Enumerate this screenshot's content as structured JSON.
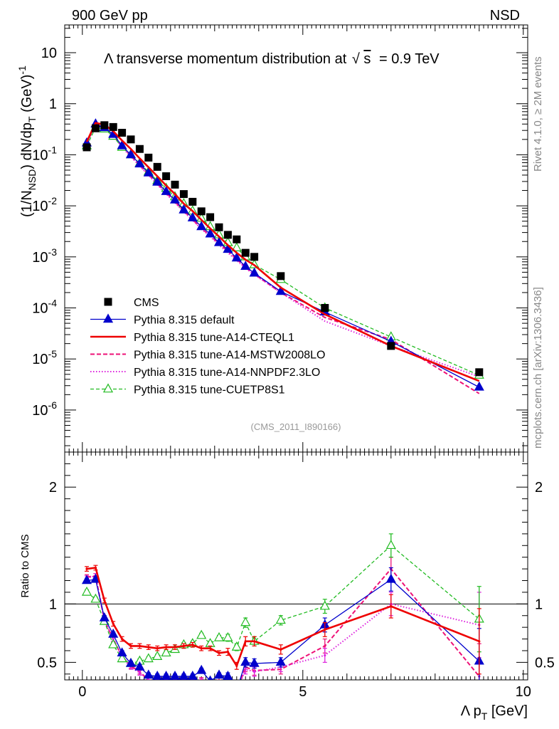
{
  "header": {
    "left": "900 GeV pp",
    "right": "NSD"
  },
  "side_labels": {
    "rivet": "Rivet 4.1.0, ≥ 2M events",
    "mcplots": "mcplots.cern.ch [arXiv:1306.3436]"
  },
  "colors": {
    "cms": "#000000",
    "default": "#0000cc",
    "cteql1": "#ee0000",
    "mstw": "#ee1177",
    "nnpdf": "#dd22dd",
    "cuetp8s1": "#22bb22"
  },
  "chart_data": [
    {
      "type": "line",
      "scale": "log",
      "title": "Λ transverse momentum distribution at √s = 0.9 TeV",
      "title_parts": {
        "main": "Λ transverse momentum distribution at",
        "sqrt": "s",
        "tail": "= 0.9 TeV"
      },
      "ylabel": "(1/N_NSD) dN/dp_T (GeV)^-1",
      "ylabel_parts": {
        "a": "(1/N",
        "b": "NSD",
        "c": ") dN/dp",
        "d": "T",
        "e": " (GeV)",
        "f": "-1"
      },
      "xlim": [
        -0.4,
        10.1
      ],
      "ylim": [
        1.5e-07,
        35
      ],
      "y_ticks": [
        {
          "v": 10,
          "t": "10"
        },
        {
          "v": 1,
          "t": "1"
        },
        {
          "v": 0.1,
          "m": "10",
          "e": "-1"
        },
        {
          "v": 0.01,
          "m": "10",
          "e": "-2"
        },
        {
          "v": 0.001,
          "m": "10",
          "e": "-3"
        },
        {
          "v": 0.0001,
          "m": "10",
          "e": "-4"
        },
        {
          "v": 1e-05,
          "m": "10",
          "e": "-5"
        },
        {
          "v": 1e-06,
          "m": "10",
          "e": "-6"
        }
      ],
      "watermark": "(CMS_2011_I890166)",
      "legend_position": "lower-left",
      "series": [
        {
          "name": "CMS",
          "key": "cms",
          "style": "square",
          "x": [
            0.1,
            0.3,
            0.5,
            0.7,
            0.9,
            1.1,
            1.3,
            1.5,
            1.7,
            1.9,
            2.1,
            2.3,
            2.5,
            2.7,
            2.9,
            3.1,
            3.3,
            3.5,
            3.7,
            3.9,
            4.5,
            5.5,
            7.0,
            9.0
          ],
          "values": [
            0.14,
            0.33,
            0.38,
            0.35,
            0.27,
            0.2,
            0.13,
            0.088,
            0.058,
            0.038,
            0.026,
            0.017,
            0.012,
            0.0078,
            0.006,
            0.0038,
            0.0027,
            0.0022,
            0.0012,
            0.001,
            0.00042,
            0.0001,
            1.8e-05,
            5.5e-06
          ]
        },
        {
          "name": "Pythia 8.315 default",
          "key": "default",
          "style": "solid-triangle",
          "x": [
            0.1,
            0.3,
            0.5,
            0.7,
            0.9,
            1.1,
            1.3,
            1.5,
            1.7,
            1.9,
            2.1,
            2.3,
            2.5,
            2.7,
            2.9,
            3.1,
            3.3,
            3.5,
            3.7,
            3.9,
            4.5,
            5.5,
            7.0,
            9.0
          ],
          "values": [
            0.17,
            0.4,
            0.34,
            0.25,
            0.15,
            0.1,
            0.066,
            0.044,
            0.029,
            0.019,
            0.013,
            0.0083,
            0.0058,
            0.0039,
            0.0028,
            0.0019,
            0.0014,
            0.00095,
            0.00065,
            0.00048,
            0.00021,
            8.3e-05,
            2.2e-05,
            2.8e-06
          ]
        },
        {
          "name": "Pythia 8.315 tune-A14-CTEQL1",
          "key": "cteql1",
          "style": "thick",
          "x": [
            0.1,
            0.3,
            0.5,
            0.7,
            0.9,
            1.1,
            1.3,
            1.5,
            1.7,
            1.9,
            2.1,
            2.3,
            2.5,
            2.7,
            2.9,
            3.1,
            3.3,
            3.5,
            3.7,
            3.9,
            4.5,
            5.5,
            7.0,
            9.0
          ],
          "values": [
            0.18,
            0.42,
            0.39,
            0.29,
            0.19,
            0.13,
            0.085,
            0.057,
            0.038,
            0.025,
            0.017,
            0.011,
            0.0079,
            0.0053,
            0.0036,
            0.0025,
            0.0017,
            0.0012,
            0.00088,
            0.00069,
            0.00025,
            7.5e-05,
            1.8e-05,
            3.7e-06
          ]
        },
        {
          "name": "Pythia 8.315 tune-A14-MSTW2008LO",
          "key": "mstw",
          "style": "dashed",
          "x": [
            0.1,
            0.3,
            0.5,
            0.7,
            0.9,
            1.1,
            1.3,
            1.5,
            1.7,
            1.9,
            2.1,
            2.3,
            2.5,
            2.7,
            2.9,
            3.1,
            3.3,
            3.5,
            3.7,
            3.9,
            4.5,
            5.5,
            7.0,
            9.0
          ],
          "values": [
            0.17,
            0.4,
            0.33,
            0.24,
            0.145,
            0.095,
            0.062,
            0.041,
            0.027,
            0.018,
            0.012,
            0.0079,
            0.0054,
            0.0036,
            0.0026,
            0.0018,
            0.0013,
            0.0009,
            0.00062,
            0.00046,
            0.0002,
            6.5e-05,
            2.4e-05,
            2.1e-06
          ]
        },
        {
          "name": "Pythia 8.315 tune-A14-NNPDF2.3LO",
          "key": "nnpdf",
          "style": "dotted",
          "x": [
            0.1,
            0.3,
            0.5,
            0.7,
            0.9,
            1.1,
            1.3,
            1.5,
            1.7,
            1.9,
            2.1,
            2.3,
            2.5,
            2.7,
            2.9,
            3.1,
            3.3,
            3.5,
            3.7,
            3.9,
            4.5,
            5.5,
            7.0,
            9.0
          ],
          "values": [
            0.17,
            0.4,
            0.33,
            0.24,
            0.14,
            0.092,
            0.06,
            0.04,
            0.026,
            0.017,
            0.0115,
            0.0076,
            0.0052,
            0.0035,
            0.0025,
            0.0017,
            0.0012,
            0.00085,
            0.0006,
            0.00045,
            0.0002,
            5.5e-05,
            1.8e-05,
            4.5e-06
          ]
        },
        {
          "name": "Pythia 8.315 tune-CUETP8S1",
          "key": "cuetp8s1",
          "style": "open-triangle",
          "x": [
            0.1,
            0.3,
            0.5,
            0.7,
            0.9,
            1.1,
            1.3,
            1.5,
            1.7,
            1.9,
            2.1,
            2.3,
            2.5,
            2.7,
            2.9,
            3.1,
            3.3,
            3.5,
            3.7,
            3.9,
            4.5,
            5.5,
            7.0,
            9.0
          ],
          "values": [
            0.15,
            0.34,
            0.32,
            0.23,
            0.14,
            0.1,
            0.068,
            0.046,
            0.031,
            0.022,
            0.015,
            0.011,
            0.0079,
            0.0057,
            0.0039,
            0.0027,
            0.0019,
            0.0015,
            0.001,
            0.0007,
            0.00036,
            0.0001,
            2.7e-05,
            4.8e-06
          ]
        }
      ]
    },
    {
      "type": "line",
      "scale": "linear",
      "ylabel": "Ratio to CMS",
      "xlabel": "Λ p_T [GeV]",
      "xlabel_parts": {
        "main": "Λ p",
        "sub": "T",
        "tail": " [GeV]"
      },
      "xlim": [
        -0.4,
        10.1
      ],
      "ylim": [
        0.35,
        2.3
      ],
      "reference_line": 1,
      "x_ticks": [
        {
          "v": 0,
          "t": "0"
        },
        {
          "v": 5,
          "t": "5"
        },
        {
          "v": 10,
          "t": "10"
        }
      ],
      "y_ticks": [
        {
          "v": 2,
          "t": "2"
        },
        {
          "v": 1,
          "t": "1"
        },
        {
          "v": 0.5,
          "t": "0.5"
        }
      ],
      "series": [
        {
          "name": "Pythia 8.315 default",
          "key": "default",
          "style": "solid-triangle",
          "x": [
            0.1,
            0.3,
            0.5,
            0.7,
            0.9,
            1.1,
            1.3,
            1.5,
            1.7,
            1.9,
            2.1,
            2.3,
            2.5,
            2.7,
            2.9,
            3.1,
            3.3,
            3.5,
            3.7,
            3.9,
            4.5,
            5.5,
            7.0,
            9.0
          ],
          "values": [
            1.2,
            1.21,
            0.88,
            0.74,
            0.58,
            0.49,
            0.46,
            0.39,
            0.38,
            0.38,
            0.38,
            0.38,
            0.38,
            0.43,
            0.34,
            0.39,
            0.38,
            0.26,
            0.5,
            0.49,
            0.5,
            0.82,
            1.21,
            0.51
          ],
          "err": [
            0.02,
            0.02,
            0.02,
            0.02,
            0.02,
            0.02,
            0.02,
            0.02,
            0.02,
            0.02,
            0.02,
            0.02,
            0.02,
            0.02,
            0.02,
            0.02,
            0.03,
            0.03,
            0.04,
            0.04,
            0.04,
            0.06,
            0.1,
            0.28
          ]
        },
        {
          "name": "Pythia 8.315 tune-A14-CTEQL1",
          "key": "cteql1",
          "style": "thick",
          "x": [
            0.1,
            0.3,
            0.5,
            0.7,
            0.9,
            1.1,
            1.3,
            1.5,
            1.7,
            1.9,
            2.1,
            2.3,
            2.5,
            2.7,
            2.9,
            3.1,
            3.3,
            3.5,
            3.7,
            3.9,
            4.5,
            5.5,
            7.0,
            9.0
          ],
          "values": [
            1.3,
            1.31,
            1.03,
            0.83,
            0.7,
            0.64,
            0.64,
            0.63,
            0.62,
            0.63,
            0.63,
            0.64,
            0.65,
            0.62,
            0.62,
            0.58,
            0.59,
            0.47,
            0.68,
            0.68,
            0.61,
            0.78,
            0.98,
            0.68
          ],
          "err": [
            0.02,
            0.02,
            0.02,
            0.02,
            0.02,
            0.02,
            0.02,
            0.02,
            0.02,
            0.02,
            0.02,
            0.02,
            0.02,
            0.02,
            0.02,
            0.02,
            0.03,
            0.03,
            0.04,
            0.04,
            0.04,
            0.06,
            0.1,
            0.28
          ]
        },
        {
          "name": "Pythia 8.315 tune-A14-MSTW2008LO",
          "key": "mstw",
          "style": "dashed",
          "x": [
            0.1,
            0.3,
            0.5,
            0.7,
            0.9,
            1.1,
            1.3,
            1.5,
            1.7,
            1.9,
            2.1,
            2.3,
            2.5,
            2.7,
            2.9,
            3.1,
            3.3,
            3.5,
            3.7,
            3.9,
            4.5,
            5.5,
            7.0,
            9.0
          ],
          "values": [
            1.23,
            1.24,
            0.86,
            0.7,
            0.55,
            0.47,
            0.42,
            0.35,
            0.34,
            0.33,
            0.33,
            0.33,
            0.33,
            0.35,
            0.32,
            0.33,
            0.33,
            0.25,
            0.46,
            0.43,
            0.44,
            0.64,
            1.3,
            0.38
          ],
          "err": [
            0.02,
            0.02,
            0.02,
            0.02,
            0.02,
            0.02,
            0.02,
            0.02,
            0.02,
            0.02,
            0.02,
            0.02,
            0.02,
            0.02,
            0.02,
            0.02,
            0.03,
            0.03,
            0.04,
            0.04,
            0.04,
            0.06,
            0.1,
            0.28
          ]
        },
        {
          "name": "Pythia 8.315 tune-A14-NNPDF2.3LO",
          "key": "nnpdf",
          "style": "dotted",
          "x": [
            0.1,
            0.3,
            0.5,
            0.7,
            0.9,
            1.1,
            1.3,
            1.5,
            1.7,
            1.9,
            2.1,
            2.3,
            2.5,
            2.7,
            2.9,
            3.1,
            3.3,
            3.5,
            3.7,
            3.9,
            4.5,
            5.5,
            7.0,
            9.0
          ],
          "values": [
            1.22,
            1.24,
            0.86,
            0.7,
            0.54,
            0.46,
            0.41,
            0.35,
            0.33,
            0.33,
            0.32,
            0.32,
            0.32,
            0.34,
            0.31,
            0.32,
            0.32,
            0.24,
            0.44,
            0.42,
            0.46,
            0.56,
            1.0,
            0.82
          ],
          "err": [
            0.02,
            0.02,
            0.02,
            0.02,
            0.02,
            0.02,
            0.02,
            0.02,
            0.02,
            0.02,
            0.02,
            0.02,
            0.02,
            0.02,
            0.02,
            0.02,
            0.03,
            0.03,
            0.04,
            0.04,
            0.04,
            0.06,
            0.1,
            0.28
          ]
        },
        {
          "name": "Pythia 8.315 tune-CUETP8S1",
          "key": "cuetp8s1",
          "style": "open-triangle",
          "x": [
            0.1,
            0.3,
            0.5,
            0.7,
            0.9,
            1.1,
            1.3,
            1.5,
            1.7,
            1.9,
            2.1,
            2.3,
            2.5,
            2.7,
            2.9,
            3.1,
            3.3,
            3.5,
            3.7,
            3.9,
            4.5,
            5.5,
            7.0,
            9.0
          ],
          "values": [
            1.1,
            1.04,
            0.85,
            0.65,
            0.53,
            0.49,
            0.51,
            0.53,
            0.55,
            0.58,
            0.61,
            0.65,
            0.66,
            0.73,
            0.66,
            0.71,
            0.71,
            0.63,
            0.84,
            0.68,
            0.86,
            0.98,
            1.5,
            0.87
          ],
          "err": [
            0.02,
            0.02,
            0.02,
            0.02,
            0.02,
            0.02,
            0.02,
            0.02,
            0.02,
            0.02,
            0.02,
            0.02,
            0.02,
            0.02,
            0.02,
            0.02,
            0.03,
            0.03,
            0.04,
            0.04,
            0.04,
            0.06,
            0.1,
            0.28
          ]
        }
      ]
    }
  ]
}
